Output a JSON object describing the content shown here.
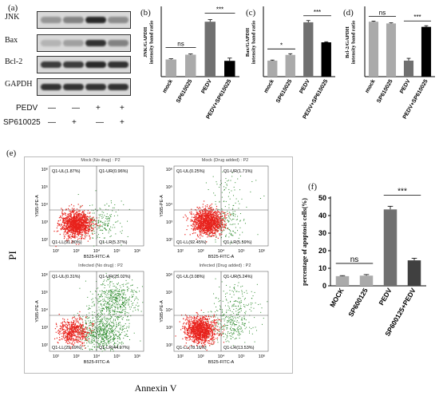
{
  "panel_labels": {
    "a": "(a)",
    "b": "(b)",
    "c": "(c)",
    "d": "(d)",
    "e": "(e)",
    "f": "(f)"
  },
  "western_blot": {
    "bands": [
      "JNK",
      "Bax",
      "Bcl-2",
      "GAPDH"
    ],
    "treatments": [
      {
        "name": "PEDV",
        "signs": [
          "—",
          "—",
          "+",
          "+"
        ]
      },
      {
        "name": "SP610025",
        "signs": [
          "—",
          "+",
          "—",
          "+"
        ]
      }
    ]
  },
  "chart_data": [
    {
      "type": "bar",
      "panel": "b",
      "categories": [
        "mock",
        "SP610025",
        "PEDV",
        "PEDV+SP610025"
      ],
      "values": [
        0.25,
        0.32,
        0.8,
        0.23
      ],
      "errors": [
        0.01,
        0.01,
        0.03,
        0.04
      ],
      "ylabel": "JNK/GAPDH intensity band ratio",
      "ylim": [
        0,
        1.0
      ],
      "colors": [
        "#aaaaaa",
        "#aaaaaa",
        "#707070",
        "#000000"
      ],
      "annotations": [
        {
          "from": 0,
          "to": 1,
          "text": "ns"
        },
        {
          "from": 2,
          "to": 3,
          "text": "***"
        }
      ]
    },
    {
      "type": "bar",
      "panel": "c",
      "categories": [
        "mock",
        "SP610025",
        "PEDV",
        "PEDV+SP610025"
      ],
      "values": [
        0.28,
        0.38,
        0.95,
        0.6
      ],
      "errors": [
        0.01,
        0.02,
        0.03,
        0.01
      ],
      "ylabel": "Bax/GAPDH intensity band ratio",
      "ylim": [
        0,
        1.2
      ],
      "colors": [
        "#aaaaaa",
        "#aaaaaa",
        "#707070",
        "#000000"
      ],
      "annotations": [
        {
          "from": 0,
          "to": 1,
          "text": "*"
        },
        {
          "from": 2,
          "to": 3,
          "text": "***"
        }
      ]
    },
    {
      "type": "bar",
      "panel": "d",
      "categories": [
        "mock",
        "SP610025",
        "PEDV",
        "PEDV+SP610025"
      ],
      "values": [
        0.96,
        0.93,
        0.28,
        0.87
      ],
      "errors": [
        0.01,
        0.01,
        0.04,
        0.02
      ],
      "ylabel": "Bcl-2/GAPDH intensity band ratio",
      "ylim": [
        0,
        1.2
      ],
      "colors": [
        "#aaaaaa",
        "#aaaaaa",
        "#707070",
        "#000000"
      ],
      "annotations": [
        {
          "from": 0,
          "to": 1,
          "text": "ns"
        },
        {
          "from": 2,
          "to": 3,
          "text": "***"
        }
      ]
    },
    {
      "type": "bar",
      "panel": "f",
      "categories": [
        "MOCK",
        "SP600125",
        "PEDV",
        "SP600125+PEDV"
      ],
      "values": [
        5.5,
        5.8,
        43.5,
        14.5
      ],
      "errors": [
        0.3,
        0.6,
        1.8,
        1.2
      ],
      "ylabel": "percentage of apoptosis cells(%)",
      "ylim": [
        0,
        50
      ],
      "yticks": [
        0,
        10,
        20,
        30,
        40,
        50
      ],
      "colors": [
        "#aaaaaa",
        "#aaaaaa",
        "#707070",
        "#404040"
      ],
      "annotations": [
        {
          "from": 0,
          "to": 1,
          "text": "ns"
        },
        {
          "from": 2,
          "to": 3,
          "text": "***"
        }
      ]
    },
    {
      "type": "scatter",
      "panel": "e",
      "ylabel": "PI",
      "xlabel": "Annexin V",
      "subplots": [
        {
          "title": "Mock (No drug) : P2",
          "ul": "Q1-UL(1.87%)",
          "ur": "Q1-UR(0.96%)",
          "ll": "Q1-LL(91.80%)",
          "lr": "Q1-LR(5.37%)",
          "xaxis": "B525-FITC-A",
          "yaxis": "Y585-PE-A"
        },
        {
          "title": "Mock (Drug added) : P2",
          "ul": "Q1-UL(0.25%)",
          "ur": "Q1-UR(1.71%)",
          "ll": "Q1-LL(92.45%)",
          "lr": "Q1-LR(5.59%)",
          "xaxis": "B525-FITC-A",
          "yaxis": "Y585-PE-A"
        },
        {
          "title": "Infected (No drug) : P2",
          "ul": "Q1-UL(0.31%)",
          "ur": "Q1-UR(25.02%)",
          "ll": "Q1-LL(29.69%)",
          "lr": "Q1-LR(44.97%)",
          "xaxis": "B525-FITC-A",
          "yaxis": "Y585-PE-A"
        },
        {
          "title": "Infected (Drug added) : P2",
          "ul": "Q1-UL(3.08%)",
          "ur": "Q1-UR(5.24%)",
          "ll": "Q1-LL(78.16%)",
          "lr": "Q1-LR(13.53%)",
          "xaxis": "B525-FITC-A",
          "yaxis": "Y585-PE-A"
        }
      ],
      "xticks": [
        "10²",
        "10³",
        "10⁴",
        "10⁵",
        "10⁶"
      ],
      "yticks": [
        "10²",
        "10³",
        "10⁴",
        "10⁵",
        "10⁶"
      ]
    }
  ]
}
